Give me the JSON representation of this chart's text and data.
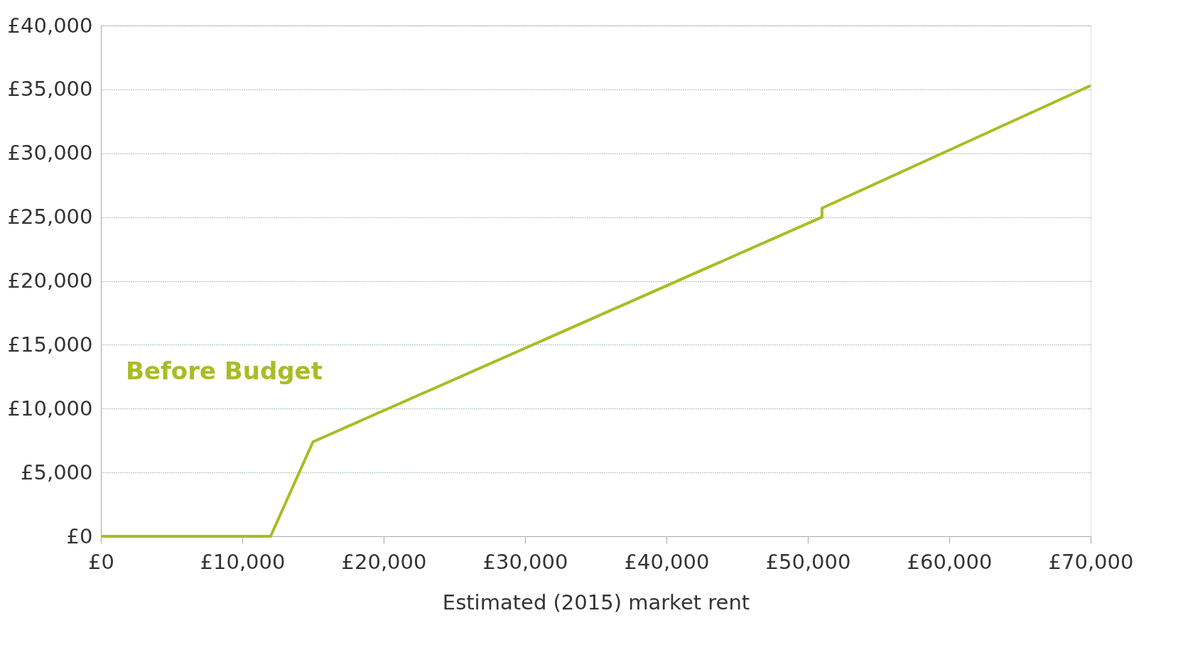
{
  "chart_data": {
    "type": "line",
    "xlabel": "Estimated (2015) market rent",
    "series": [
      {
        "name": "Before Budget",
        "color": "#a9bc24",
        "x": [
          0,
          12000,
          15000,
          51000,
          51000,
          70000
        ],
        "values": [
          0,
          0,
          7400,
          25000,
          25700,
          35300
        ]
      }
    ],
    "xlim": [
      0,
      70000
    ],
    "xticks": [
      {
        "value": 0,
        "label": "£0"
      },
      {
        "value": 10000,
        "label": "£10,000"
      },
      {
        "value": 20000,
        "label": "£20,000"
      },
      {
        "value": 30000,
        "label": "£30,000"
      },
      {
        "value": 40000,
        "label": "£40,000"
      },
      {
        "value": 50000,
        "label": "£50,000"
      },
      {
        "value": 60000,
        "label": "£60,000"
      },
      {
        "value": 70000,
        "label": "£70,000"
      }
    ],
    "ylim": [
      0,
      40000
    ],
    "yticks": [
      {
        "value": 0,
        "label": "£0"
      },
      {
        "value": 5000,
        "label": "£5,000"
      },
      {
        "value": 10000,
        "label": "£10,000"
      },
      {
        "value": 15000,
        "label": "£15,000"
      },
      {
        "value": 20000,
        "label": "£20,000"
      },
      {
        "value": 25000,
        "label": "£25,000"
      },
      {
        "value": 30000,
        "label": "£30,000"
      },
      {
        "value": 35000,
        "label": "£35,000"
      },
      {
        "value": 40000,
        "label": "£40,000"
      }
    ],
    "grid": "y",
    "legend": false,
    "marker": "none",
    "line_style": "solid"
  }
}
